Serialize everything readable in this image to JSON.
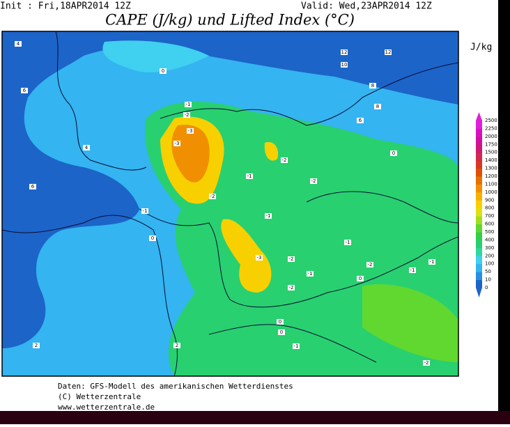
{
  "header": {
    "init": "Init : Fri,18APR2014 12Z",
    "valid": "Valid: Wed,23APR2014 12Z",
    "title": "CAPE (J/kg) und Lifted Index (°C)"
  },
  "colorbar": {
    "unit": "J/kg",
    "levels": [
      0,
      10,
      50,
      100,
      200,
      300,
      400,
      500,
      600,
      700,
      800,
      900,
      1000,
      1100,
      1200,
      1300,
      1400,
      1500,
      1750,
      2000,
      2250,
      2500
    ],
    "colors": [
      "#1c64c8",
      "#2890e0",
      "#34b4f0",
      "#40d0f0",
      "#30d8a0",
      "#28d070",
      "#30d048",
      "#60d830",
      "#a0e020",
      "#e0e010",
      "#f8d000",
      "#f8b000",
      "#f09000",
      "#e87000",
      "#e05000",
      "#d83820",
      "#d02850",
      "#d01878",
      "#d010a0",
      "#d810c0",
      "#e020d8"
    ]
  },
  "contour_labels": [
    "4",
    "6",
    "4",
    "6",
    "2",
    "0",
    "12",
    "10",
    "12",
    "8",
    "8",
    "6",
    "-1",
    "-2",
    "-3",
    "-3",
    "-2",
    "0",
    "-2",
    "-1",
    "-2",
    "-1",
    "0",
    "-1",
    "-3",
    "-2",
    "-2",
    "-1",
    "-1",
    "-2",
    "-1",
    "0",
    "-1",
    "0",
    "2",
    "-1",
    "-2",
    "0"
  ],
  "footer": [
    "Daten: GFS-Modell des amerikanischen Wetterdienstes",
    "(C) Wetterzentrale",
    "www.wetterzentrale.de"
  ]
}
